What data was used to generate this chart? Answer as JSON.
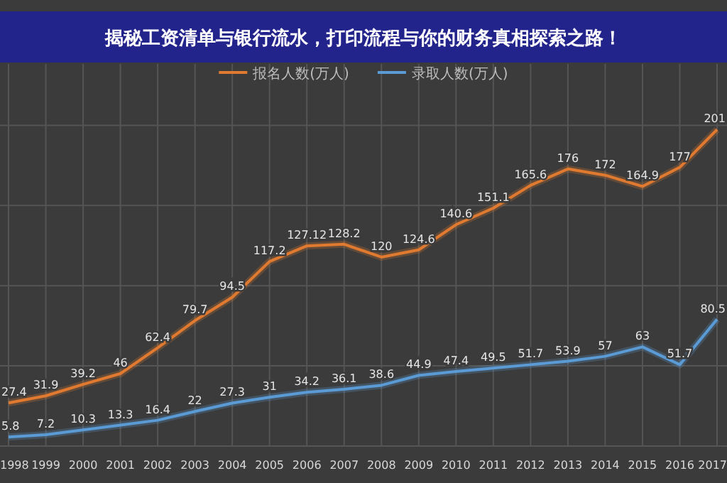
{
  "chart_data": {
    "type": "line",
    "title": "揭秘工资清单与银行流水，打印流程与你的财务真相探索之路！",
    "categories": [
      "1998",
      "1999",
      "2000",
      "2001",
      "2002",
      "2003",
      "2004",
      "2005",
      "2006",
      "2007",
      "2008",
      "2009",
      "2010",
      "2011",
      "2012",
      "2013",
      "2014",
      "2015",
      "2016",
      "2017"
    ],
    "series": [
      {
        "name": "报名人数(万人)",
        "color": "#e07a30",
        "values": [
          27.4,
          31.9,
          39.2,
          46,
          62.4,
          79.7,
          94.5,
          117.2,
          127.12,
          128.2,
          120,
          124.6,
          140.6,
          151.1,
          165.6,
          176,
          172,
          164.9,
          177,
          201
        ]
      },
      {
        "name": "录取人数(万人)",
        "color": "#5b9bd5",
        "values": [
          5.8,
          7.2,
          10.3,
          13.3,
          16.4,
          22,
          27.3,
          31,
          34.2,
          36.1,
          38.6,
          44.9,
          47.4,
          49.5,
          51.7,
          53.9,
          57,
          63,
          51.7,
          80.5
        ]
      }
    ],
    "tick_labels": "x",
    "grid": true,
    "legend": "top",
    "data_labels": true,
    "marker": "none",
    "line_style": "solid"
  }
}
